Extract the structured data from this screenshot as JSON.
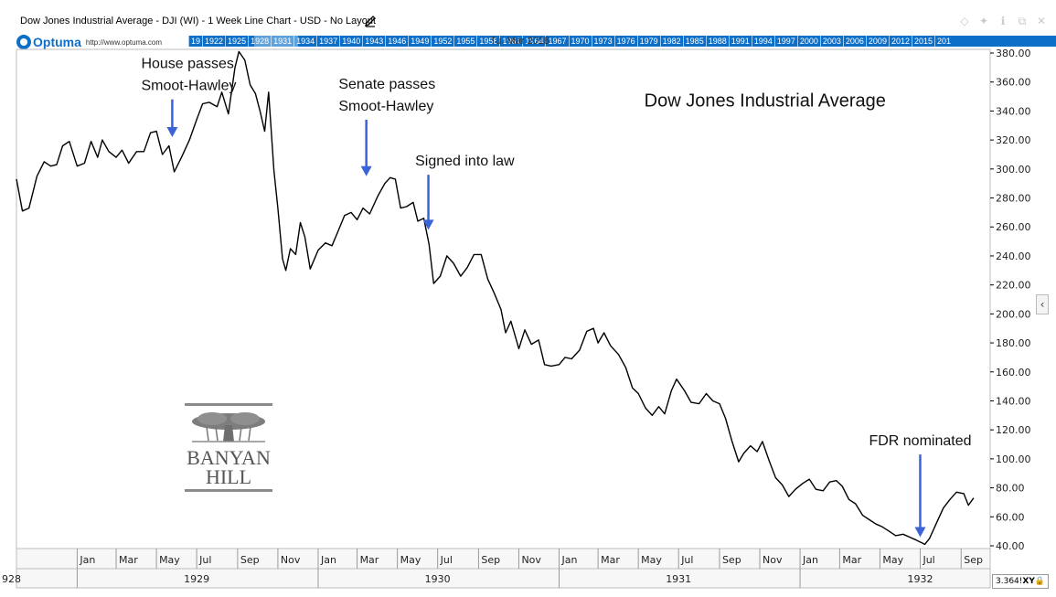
{
  "header": {
    "chart_title": "Dow Jones Industrial Average - DJI (WI) - 1 Week Line Chart - USD - No Layout",
    "brand_name": "Optuma",
    "brand_url": "http://www.optuma.com",
    "timeline_years": [
      "19",
      "1922",
      "1925",
      "1928",
      "1931",
      "1934",
      "1937",
      "1940",
      "1943",
      "1946",
      "1949",
      "1952",
      "1955",
      "1958",
      "1961",
      "1964",
      "1967",
      "1970",
      "1973",
      "1976",
      "1979",
      "1982",
      "1985",
      "1988",
      "1991",
      "1994",
      "1997",
      "2000",
      "2003",
      "2006",
      "2009",
      "2012",
      "2015",
      "201"
    ],
    "timeline_date": "Tu. Mar 2018",
    "window_icons": [
      "diamond-icon",
      "pin-icon",
      "info-icon",
      "restore-icon",
      "close-icon"
    ]
  },
  "footer": {
    "scale_value": "3.364!",
    "xy_label": "XY"
  },
  "logo": {
    "line1": "BANYAN",
    "line2": "HILL"
  },
  "colors": {
    "timeline_bar": "#0d6fc7",
    "line": "#000000",
    "arrow": "#3a63d8",
    "logo_gray": "#8b8b8b"
  },
  "chart_data": {
    "type": "line",
    "title": "Dow Jones Industrial Average",
    "xlabel": "",
    "ylabel": "",
    "ylim": [
      40,
      380
    ],
    "yticks": [
      40,
      60,
      80,
      100,
      120,
      140,
      160,
      180,
      200,
      220,
      240,
      260,
      280,
      300,
      320,
      340,
      360,
      380
    ],
    "ytick_labels": [
      "40.00",
      "60.00",
      "80.00",
      "100.00",
      "120.00",
      "140.00",
      "160.00",
      "180.00",
      "200.00",
      "220.00",
      "240.00",
      "260.00",
      "280.00",
      "300.00",
      "320.00",
      "340.00",
      "360.00",
      "380.00"
    ],
    "x_range": [
      "1928-10-01",
      "1932-10-15"
    ],
    "month_ticks": [
      {
        "label": "Jan",
        "date": "1929-01-01"
      },
      {
        "label": "Mar",
        "date": "1929-03-01"
      },
      {
        "label": "May",
        "date": "1929-05-01"
      },
      {
        "label": "Jul",
        "date": "1929-07-01"
      },
      {
        "label": "Sep",
        "date": "1929-09-01"
      },
      {
        "label": "Nov",
        "date": "1929-11-01"
      },
      {
        "label": "Jan",
        "date": "1930-01-01"
      },
      {
        "label": "Mar",
        "date": "1930-03-01"
      },
      {
        "label": "May",
        "date": "1930-05-01"
      },
      {
        "label": "Jul",
        "date": "1930-07-01"
      },
      {
        "label": "Sep",
        "date": "1930-09-01"
      },
      {
        "label": "Nov",
        "date": "1930-11-01"
      },
      {
        "label": "Jan",
        "date": "1931-01-01"
      },
      {
        "label": "Mar",
        "date": "1931-03-01"
      },
      {
        "label": "May",
        "date": "1931-05-01"
      },
      {
        "label": "Jul",
        "date": "1931-07-01"
      },
      {
        "label": "Sep",
        "date": "1931-09-01"
      },
      {
        "label": "Nov",
        "date": "1931-11-01"
      },
      {
        "label": "Jan",
        "date": "1932-01-01"
      },
      {
        "label": "Mar",
        "date": "1932-03-01"
      },
      {
        "label": "May",
        "date": "1932-05-01"
      },
      {
        "label": "Jul",
        "date": "1932-07-01"
      },
      {
        "label": "Sep",
        "date": "1932-09-01"
      }
    ],
    "year_ticks": [
      {
        "label": "928",
        "date": "1928-10-01",
        "align": "start"
      },
      {
        "label": "1929",
        "date": "1929-07-01",
        "align": "middle"
      },
      {
        "label": "1930",
        "date": "1930-07-01",
        "align": "middle"
      },
      {
        "label": "1931",
        "date": "1931-07-01",
        "align": "middle"
      },
      {
        "label": "1932",
        "date": "1932-07-01",
        "align": "middle"
      }
    ],
    "year_dividers": [
      "1929-01-01",
      "1930-01-01",
      "1931-01-01",
      "1932-01-01"
    ],
    "series": [
      {
        "name": "",
        "points": [
          [
            "1928-10-01",
            293
          ],
          [
            "1928-10-10",
            271
          ],
          [
            "1928-10-20",
            273
          ],
          [
            "1928-11-01",
            295
          ],
          [
            "1928-11-12",
            305
          ],
          [
            "1928-11-22",
            302
          ],
          [
            "1928-12-01",
            303
          ],
          [
            "1928-12-10",
            316
          ],
          [
            "1928-12-20",
            319
          ],
          [
            "1929-01-01",
            302
          ],
          [
            "1929-01-12",
            304
          ],
          [
            "1929-01-22",
            319
          ],
          [
            "1929-02-01",
            308
          ],
          [
            "1929-02-08",
            320
          ],
          [
            "1929-02-18",
            312
          ],
          [
            "1929-03-01",
            308
          ],
          [
            "1929-03-10",
            313
          ],
          [
            "1929-03-20",
            304
          ],
          [
            "1929-04-01",
            312
          ],
          [
            "1929-04-12",
            312
          ],
          [
            "1929-04-22",
            325
          ],
          [
            "1929-05-01",
            326
          ],
          [
            "1929-05-10",
            310
          ],
          [
            "1929-05-20",
            316
          ],
          [
            "1929-05-28",
            298
          ],
          [
            "1929-06-08",
            308
          ],
          [
            "1929-06-20",
            320
          ],
          [
            "1929-07-01",
            334
          ],
          [
            "1929-07-10",
            345
          ],
          [
            "1929-07-20",
            346
          ],
          [
            "1929-08-01",
            343
          ],
          [
            "1929-08-08",
            353
          ],
          [
            "1929-08-18",
            338
          ],
          [
            "1929-08-28",
            370
          ],
          [
            "1929-09-03",
            381
          ],
          [
            "1929-09-12",
            375
          ],
          [
            "1929-09-20",
            358
          ],
          [
            "1929-09-28",
            352
          ],
          [
            "1929-10-05",
            340
          ],
          [
            "1929-10-12",
            326
          ],
          [
            "1929-10-18",
            353
          ],
          [
            "1929-10-26",
            299
          ],
          [
            "1929-11-01",
            273
          ],
          [
            "1929-11-08",
            238
          ],
          [
            "1929-11-13",
            230
          ],
          [
            "1929-11-20",
            245
          ],
          [
            "1929-11-28",
            241
          ],
          [
            "1929-12-05",
            263
          ],
          [
            "1929-12-12",
            253
          ],
          [
            "1929-12-20",
            231
          ],
          [
            "1930-01-01",
            244
          ],
          [
            "1930-01-12",
            249
          ],
          [
            "1930-01-22",
            247
          ],
          [
            "1930-02-01",
            258
          ],
          [
            "1930-02-10",
            268
          ],
          [
            "1930-02-20",
            270
          ],
          [
            "1930-03-01",
            265
          ],
          [
            "1930-03-10",
            273
          ],
          [
            "1930-03-20",
            269
          ],
          [
            "1930-04-01",
            281
          ],
          [
            "1930-04-12",
            290
          ],
          [
            "1930-04-20",
            294
          ],
          [
            "1930-04-28",
            293
          ],
          [
            "1930-05-06",
            273
          ],
          [
            "1930-05-15",
            274
          ],
          [
            "1930-05-25",
            277
          ],
          [
            "1930-06-01",
            264
          ],
          [
            "1930-06-10",
            266
          ],
          [
            "1930-06-18",
            248
          ],
          [
            "1930-06-25",
            221
          ],
          [
            "1930-07-05",
            226
          ],
          [
            "1930-07-15",
            240
          ],
          [
            "1930-07-25",
            235
          ],
          [
            "1930-08-05",
            226
          ],
          [
            "1930-08-15",
            232
          ],
          [
            "1930-08-25",
            241
          ],
          [
            "1930-09-05",
            241
          ],
          [
            "1930-09-15",
            224
          ],
          [
            "1930-09-25",
            214
          ],
          [
            "1930-10-05",
            203
          ],
          [
            "1930-10-12",
            187
          ],
          [
            "1930-10-20",
            195
          ],
          [
            "1930-11-01",
            176
          ],
          [
            "1930-11-10",
            189
          ],
          [
            "1930-11-20",
            179
          ],
          [
            "1930-12-01",
            182
          ],
          [
            "1930-12-10",
            165
          ],
          [
            "1930-12-20",
            164
          ],
          [
            "1931-01-01",
            165
          ],
          [
            "1931-01-10",
            170
          ],
          [
            "1931-01-20",
            169
          ],
          [
            "1931-02-01",
            175
          ],
          [
            "1931-02-12",
            188
          ],
          [
            "1931-02-22",
            190
          ],
          [
            "1931-03-01",
            180
          ],
          [
            "1931-03-10",
            187
          ],
          [
            "1931-03-20",
            178
          ],
          [
            "1931-04-01",
            172
          ],
          [
            "1931-04-12",
            163
          ],
          [
            "1931-04-22",
            149
          ],
          [
            "1931-05-01",
            145
          ],
          [
            "1931-05-12",
            135
          ],
          [
            "1931-05-22",
            130
          ],
          [
            "1931-06-01",
            136
          ],
          [
            "1931-06-10",
            131
          ],
          [
            "1931-06-20",
            147
          ],
          [
            "1931-06-28",
            155
          ],
          [
            "1931-07-10",
            147
          ],
          [
            "1931-07-20",
            139
          ],
          [
            "1931-08-01",
            138
          ],
          [
            "1931-08-12",
            145
          ],
          [
            "1931-08-22",
            140
          ],
          [
            "1931-09-01",
            138
          ],
          [
            "1931-09-10",
            128
          ],
          [
            "1931-09-20",
            112
          ],
          [
            "1931-09-30",
            98
          ],
          [
            "1931-10-08",
            104
          ],
          [
            "1931-10-18",
            109
          ],
          [
            "1931-10-28",
            105
          ],
          [
            "1931-11-05",
            112
          ],
          [
            "1931-11-15",
            99
          ],
          [
            "1931-11-25",
            87
          ],
          [
            "1931-12-05",
            82
          ],
          [
            "1931-12-15",
            74
          ],
          [
            "1931-12-25",
            79
          ],
          [
            "1932-01-05",
            83
          ],
          [
            "1932-01-15",
            86
          ],
          [
            "1932-01-25",
            79
          ],
          [
            "1932-02-05",
            78
          ],
          [
            "1932-02-15",
            84
          ],
          [
            "1932-02-25",
            85
          ],
          [
            "1932-03-05",
            81
          ],
          [
            "1932-03-15",
            72
          ],
          [
            "1932-03-25",
            69
          ],
          [
            "1932-04-05",
            61
          ],
          [
            "1932-04-15",
            58
          ],
          [
            "1932-04-25",
            55
          ],
          [
            "1932-05-05",
            53
          ],
          [
            "1932-05-15",
            50
          ],
          [
            "1932-05-25",
            47
          ],
          [
            "1932-06-05",
            48
          ],
          [
            "1932-06-15",
            46
          ],
          [
            "1932-06-25",
            44
          ],
          [
            "1932-07-08",
            41
          ],
          [
            "1932-07-15",
            45
          ],
          [
            "1932-07-25",
            55
          ],
          [
            "1932-08-05",
            66
          ],
          [
            "1932-08-15",
            72
          ],
          [
            "1932-08-25",
            77
          ],
          [
            "1932-09-05",
            76
          ],
          [
            "1932-09-12",
            68
          ],
          [
            "1932-09-20",
            73
          ]
        ]
      }
    ],
    "annotations": [
      {
        "lines": [
          "House passes",
          "Smoot-Hawley"
        ],
        "date": "1929-05-25",
        "value": 322,
        "arrow_from": 348,
        "anchor": "start",
        "text_date": "1929-04-08"
      },
      {
        "lines": [
          "Senate passes",
          "Smoot-Hawley"
        ],
        "date": "1930-03-15",
        "value": 295,
        "arrow_from": 334,
        "anchor": "start",
        "text_date": "1930-02-01"
      },
      {
        "lines": [
          "Signed into law"
        ],
        "date": "1930-06-17",
        "value": 258,
        "arrow_from": 296,
        "anchor": "start",
        "text_date": "1930-05-28"
      },
      {
        "lines": [
          "FDR nominated"
        ],
        "date": "1932-07-01",
        "value": 46,
        "arrow_from": 103,
        "anchor": "middle",
        "text_date": "1932-07-01"
      },
      {
        "lines": [
          "Dow Jones Industrial Average"
        ],
        "type": "title",
        "text_date": "1931-05-10",
        "value": 343
      }
    ]
  }
}
